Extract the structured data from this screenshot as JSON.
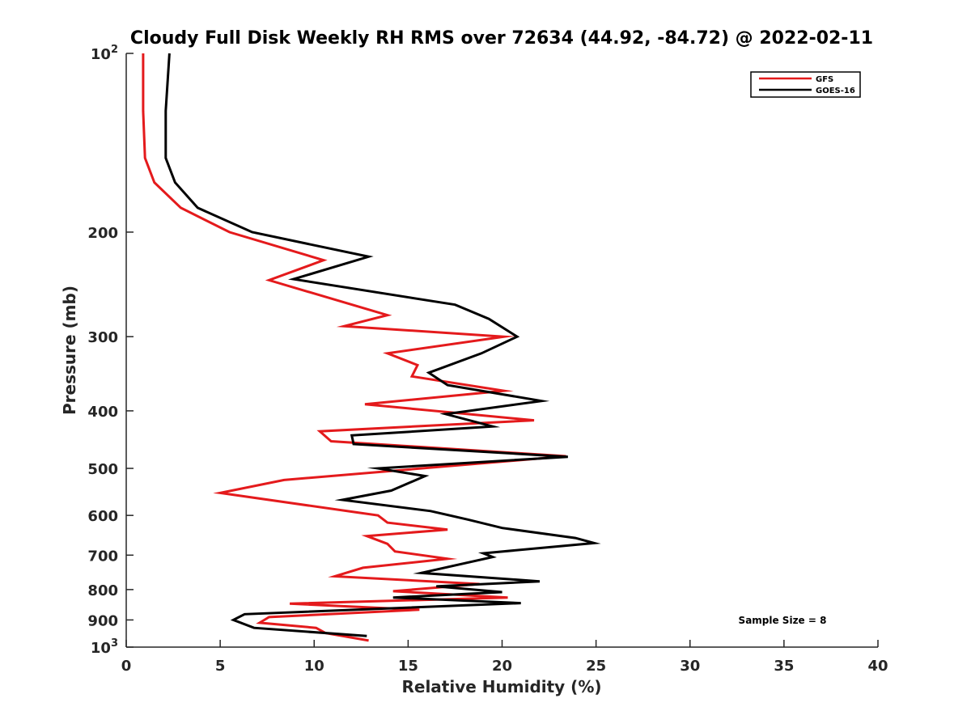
{
  "chart_data": {
    "type": "line",
    "title": "Cloudy Full Disk Weekly RH RMS over 72634 (44.92, -84.72) @ 2022-02-11",
    "xlabel": "Relative Humidity (%)",
    "ylabel": "Pressure (mb)",
    "xlim": [
      0,
      40
    ],
    "ylim": [
      100,
      1000
    ],
    "yscale": "log",
    "y_reversed": true,
    "grid": false,
    "legend_position": "top-right",
    "x_ticks": [
      "0",
      "5",
      "10",
      "15",
      "20",
      "25",
      "30",
      "35",
      "40"
    ],
    "y_ticks": [
      {
        "value": 100,
        "base": "10",
        "exp": "2"
      },
      {
        "value": 200,
        "label": "200"
      },
      {
        "value": 300,
        "label": "300"
      },
      {
        "value": 400,
        "label": "400"
      },
      {
        "value": 500,
        "label": "500"
      },
      {
        "value": 600,
        "label": "600"
      },
      {
        "value": 700,
        "label": "700"
      },
      {
        "value": 800,
        "label": "800"
      },
      {
        "value": 900,
        "label": "900"
      },
      {
        "value": 1000,
        "base": "10",
        "exp": "3"
      }
    ],
    "annotation": "Sample Size = 8",
    "series": [
      {
        "name": "GFS",
        "color": "#e41a1c",
        "points": [
          [
            0.9,
            100
          ],
          [
            0.9,
            125
          ],
          [
            1.0,
            150
          ],
          [
            1.5,
            165
          ],
          [
            2.9,
            182
          ],
          [
            5.5,
            200
          ],
          [
            10.5,
            223
          ],
          [
            7.6,
            241
          ],
          [
            13.9,
            276
          ],
          [
            11.6,
            288
          ],
          [
            20.1,
            300
          ],
          [
            13.9,
            320
          ],
          [
            15.5,
            335
          ],
          [
            15.2,
            350
          ],
          [
            20.1,
            370
          ],
          [
            12.7,
            390
          ],
          [
            21.7,
            415
          ],
          [
            10.3,
            433
          ],
          [
            10.9,
            450
          ],
          [
            23.4,
            477
          ],
          [
            8.4,
            523
          ],
          [
            5.0,
            550
          ],
          [
            13.4,
            600
          ],
          [
            13.9,
            617
          ],
          [
            17.1,
            634
          ],
          [
            12.8,
            650
          ],
          [
            13.9,
            670
          ],
          [
            14.3,
            690
          ],
          [
            17.1,
            710
          ],
          [
            12.6,
            735
          ],
          [
            11.1,
            760
          ],
          [
            18.8,
            783
          ],
          [
            14.2,
            805
          ],
          [
            20.3,
            825
          ],
          [
            8.7,
            845
          ],
          [
            15.6,
            865
          ],
          [
            7.6,
            890
          ],
          [
            7.1,
            910
          ],
          [
            10.1,
            928
          ],
          [
            10.6,
            947
          ],
          [
            12.9,
            975
          ]
        ]
      },
      {
        "name": "GOES-16",
        "color": "#000000",
        "points": [
          [
            2.3,
            100
          ],
          [
            2.1,
            125
          ],
          [
            2.1,
            150
          ],
          [
            2.6,
            165
          ],
          [
            3.8,
            182
          ],
          [
            6.7,
            200
          ],
          [
            12.9,
            220
          ],
          [
            8.9,
            240
          ],
          [
            17.5,
            265
          ],
          [
            19.3,
            280
          ],
          [
            20.8,
            300
          ],
          [
            18.9,
            320
          ],
          [
            16.1,
            345
          ],
          [
            17.1,
            362
          ],
          [
            22.1,
            385
          ],
          [
            17.0,
            405
          ],
          [
            19.5,
            425
          ],
          [
            12.0,
            440
          ],
          [
            12.1,
            455
          ],
          [
            23.5,
            478
          ],
          [
            13.4,
            500
          ],
          [
            15.9,
            515
          ],
          [
            14.1,
            545
          ],
          [
            11.5,
            565
          ],
          [
            16.2,
            590
          ],
          [
            18.2,
            610
          ],
          [
            20.0,
            630
          ],
          [
            23.9,
            655
          ],
          [
            24.9,
            668
          ],
          [
            19.0,
            695
          ],
          [
            19.5,
            705
          ],
          [
            15.7,
            750
          ],
          [
            22.0,
            775
          ],
          [
            16.5,
            790
          ],
          [
            20.0,
            808
          ],
          [
            14.2,
            825
          ],
          [
            21.0,
            843
          ],
          [
            6.3,
            880
          ],
          [
            5.7,
            900
          ],
          [
            6.8,
            928
          ],
          [
            12.8,
            958
          ]
        ]
      }
    ]
  }
}
